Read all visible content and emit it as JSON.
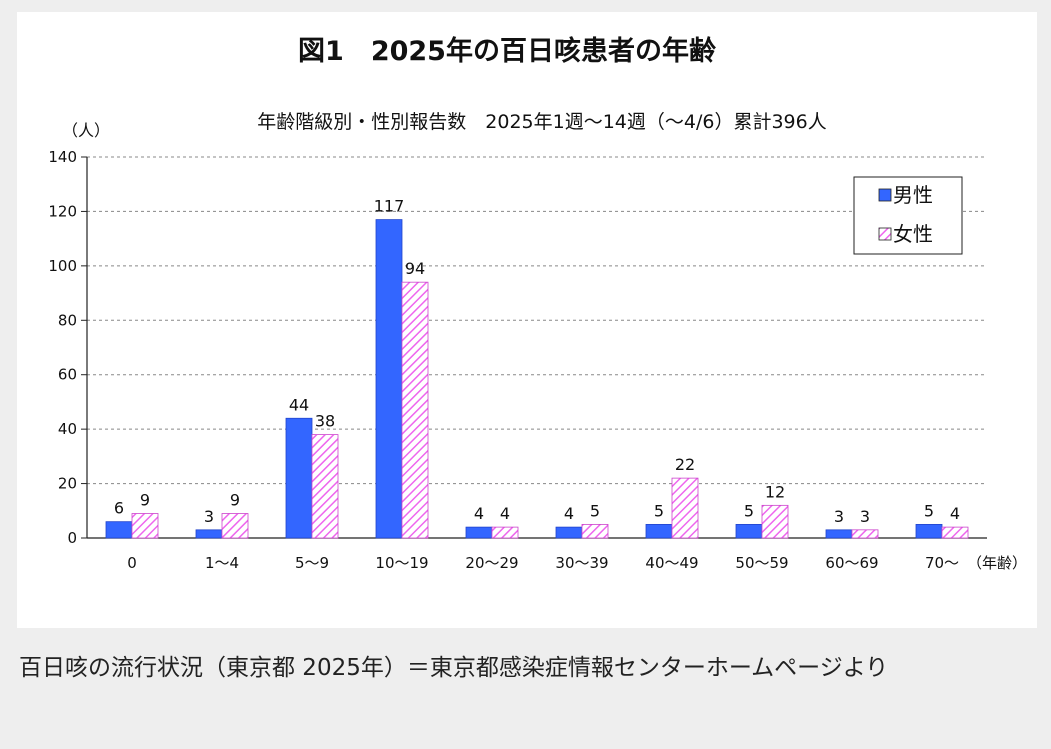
{
  "chart_data": {
    "type": "bar",
    "title": "図1　2025年の百日咳患者の年齢",
    "subtitle": "年齢階級別・性別報告数　2025年1週〜14週（〜4/6）累計396人",
    "ylabel": "（人）",
    "xlabel": "（年齢）",
    "ylim": [
      0,
      140
    ],
    "yticks": [
      0,
      20,
      40,
      60,
      80,
      100,
      120,
      140
    ],
    "grid": true,
    "legend_position": "top-right",
    "categories": [
      "0",
      "1〜4",
      "5〜9",
      "10〜19",
      "20〜29",
      "30〜39",
      "40〜49",
      "50〜59",
      "60〜69",
      "70〜"
    ],
    "series": [
      {
        "name": "男性",
        "values": [
          6,
          3,
          44,
          117,
          4,
          4,
          5,
          5,
          3,
          5
        ],
        "color": "#3366ff",
        "style": "solid"
      },
      {
        "name": "女性",
        "values": [
          9,
          9,
          38,
          94,
          4,
          5,
          22,
          12,
          3,
          4
        ],
        "color": "#ee66ee",
        "style": "hatched"
      }
    ]
  },
  "caption": "百日咳の流行状況（東京都 2025年）＝東京都感染症情報センターホームページより"
}
